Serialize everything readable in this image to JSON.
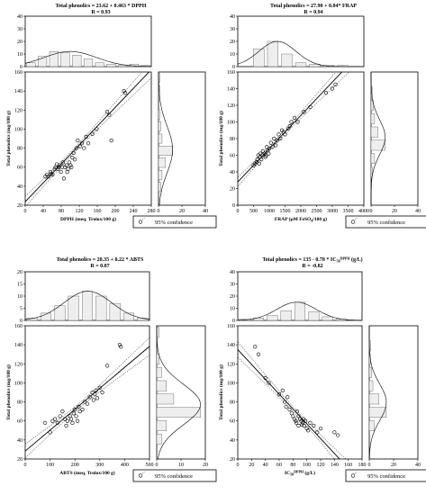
{
  "chart_data": [
    {
      "type": "scatter",
      "title": "Total phenolics = 23.62 + 0.463 * DPPH",
      "subtitle": "R = 0.93",
      "xlabel": "DPPH (meq. Trolox/100 g)",
      "ylabel": "Total phenolics (mg/100 g)",
      "xlim": [
        0,
        300
      ],
      "xticks": [
        "0",
        "40",
        "80",
        "120",
        "160",
        "200",
        "240",
        "280"
      ],
      "ylim": [
        20,
        160
      ],
      "yticks": [
        "20",
        "40",
        "60",
        "80",
        "100",
        "120",
        "140",
        "160"
      ],
      "fit": {
        "intercept": 23.62,
        "slope": 0.463
      },
      "points": [
        [
          48,
          50
        ],
        [
          52,
          52
        ],
        [
          55,
          50
        ],
        [
          60,
          55
        ],
        [
          62,
          53
        ],
        [
          65,
          52
        ],
        [
          70,
          58
        ],
        [
          72,
          60
        ],
        [
          75,
          63
        ],
        [
          78,
          58
        ],
        [
          80,
          60
        ],
        [
          82,
          62
        ],
        [
          85,
          55
        ],
        [
          88,
          60
        ],
        [
          90,
          65
        ],
        [
          92,
          48
        ],
        [
          95,
          60
        ],
        [
          98,
          62
        ],
        [
          100,
          55
        ],
        [
          102,
          58
        ],
        [
          105,
          65
        ],
        [
          108,
          62
        ],
        [
          110,
          60
        ],
        [
          112,
          70
        ],
        [
          115,
          75
        ],
        [
          118,
          68
        ],
        [
          122,
          80
        ],
        [
          125,
          88
        ],
        [
          130,
          82
        ],
        [
          135,
          85
        ],
        [
          140,
          80
        ],
        [
          145,
          92
        ],
        [
          150,
          85
        ],
        [
          160,
          95
        ],
        [
          170,
          100
        ],
        [
          195,
          118
        ],
        [
          200,
          115
        ],
        [
          205,
          88
        ],
        [
          235,
          140
        ],
        [
          238,
          138
        ]
      ],
      "top_hist": {
        "ylim": [
          0,
          40
        ],
        "yticks": [
          "0",
          "10",
          "20",
          "30",
          "40"
        ],
        "values": [
          3,
          8,
          12,
          11,
          9,
          6,
          3,
          2,
          1,
          2,
          1
        ]
      },
      "side_hist": {
        "xlim": [
          0,
          40
        ],
        "xticks": [
          "0",
          "20",
          "40"
        ],
        "values": [
          0,
          2,
          3,
          6,
          12,
          3,
          2,
          1,
          0,
          1,
          1
        ]
      },
      "legend": "95% confidence",
      "grid": false
    },
    {
      "type": "scatter",
      "title": "Total phenolics = 27.90 + 0.04* FRAP",
      "subtitle": "R = 0.94",
      "xlabel": "FRAP (µM FeSO4/100 g)",
      "ylabel": "Total phenolics (mg/100 g)",
      "xlim": [
        0,
        4000
      ],
      "xticks": [
        "0",
        "500",
        "1000",
        "1500",
        "2000",
        "2500",
        "3000",
        "3500",
        "4000"
      ],
      "ylim": [
        0,
        160
      ],
      "yticks": [
        "0",
        "20",
        "40",
        "60",
        "80",
        "100",
        "120",
        "140",
        "160"
      ],
      "fit": {
        "intercept": 27.9,
        "slope": 0.04
      },
      "points": [
        [
          500,
          48
        ],
        [
          550,
          50
        ],
        [
          600,
          52
        ],
        [
          620,
          55
        ],
        [
          650,
          60
        ],
        [
          680,
          50
        ],
        [
          700,
          58
        ],
        [
          720,
          62
        ],
        [
          750,
          55
        ],
        [
          780,
          60
        ],
        [
          800,
          65
        ],
        [
          850,
          62
        ],
        [
          880,
          58
        ],
        [
          900,
          60
        ],
        [
          920,
          70
        ],
        [
          950,
          66
        ],
        [
          980,
          62
        ],
        [
          1000,
          68
        ],
        [
          1050,
          75
        ],
        [
          1100,
          70
        ],
        [
          1150,
          80
        ],
        [
          1200,
          72
        ],
        [
          1250,
          78
        ],
        [
          1300,
          85
        ],
        [
          1350,
          80
        ],
        [
          1400,
          90
        ],
        [
          1450,
          88
        ],
        [
          1500,
          85
        ],
        [
          1600,
          92
        ],
        [
          1650,
          95
        ],
        [
          1700,
          100
        ],
        [
          1800,
          105
        ],
        [
          1900,
          100
        ],
        [
          2100,
          112
        ],
        [
          2300,
          118
        ],
        [
          2800,
          135
        ],
        [
          3000,
          140
        ],
        [
          3100,
          145
        ]
      ],
      "top_hist": {
        "ylim": [
          0,
          40
        ],
        "yticks": [
          "0",
          "10",
          "20",
          "30",
          "40"
        ],
        "values": [
          0,
          14,
          20,
          10,
          3,
          2,
          1,
          1,
          0
        ]
      },
      "side_hist": {
        "xlim": [
          0,
          40
        ],
        "xticks": [
          "0",
          "20",
          "40"
        ],
        "values": [
          0,
          0,
          1,
          3,
          12,
          6,
          3,
          2,
          1,
          0
        ]
      },
      "legend": "95% confidence",
      "grid": false
    },
    {
      "type": "scatter",
      "title": "Total phenolics = 28.35 + 0.22 * ABTS",
      "subtitle": "R = 0.87",
      "xlabel": "ABTS (meq. Trolox/100 g)",
      "ylabel": "Total phenolics (mg/100 g)",
      "xlim": [
        0,
        500
      ],
      "xticks": [
        "0",
        "100",
        "200",
        "300",
        "400",
        "500"
      ],
      "ylim": [
        20,
        160
      ],
      "yticks": [
        "20",
        "40",
        "60",
        "80",
        "100",
        "120",
        "140",
        "160"
      ],
      "fit": {
        "intercept": 28.35,
        "slope": 0.22
      },
      "points": [
        [
          80,
          58
        ],
        [
          100,
          48
        ],
        [
          110,
          60
        ],
        [
          120,
          62
        ],
        [
          130,
          58
        ],
        [
          140,
          65
        ],
        [
          150,
          70
        ],
        [
          160,
          62
        ],
        [
          165,
          55
        ],
        [
          170,
          60
        ],
        [
          180,
          65
        ],
        [
          185,
          62
        ],
        [
          190,
          58
        ],
        [
          195,
          68
        ],
        [
          200,
          72
        ],
        [
          205,
          65
        ],
        [
          210,
          60
        ],
        [
          215,
          75
        ],
        [
          220,
          70
        ],
        [
          230,
          72
        ],
        [
          240,
          80
        ],
        [
          250,
          78
        ],
        [
          260,
          85
        ],
        [
          270,
          90
        ],
        [
          275,
          82
        ],
        [
          280,
          88
        ],
        [
          285,
          92
        ],
        [
          290,
          84
        ],
        [
          300,
          95
        ],
        [
          310,
          90
        ],
        [
          330,
          118
        ],
        [
          380,
          140
        ],
        [
          385,
          138
        ]
      ],
      "top_hist": {
        "ylim": [
          0,
          20
        ],
        "yticks": [
          "0",
          "5",
          "10",
          "15",
          "20"
        ],
        "values": [
          1,
          3,
          6,
          10,
          12,
          10,
          7,
          3,
          1
        ]
      },
      "side_hist": {
        "xlim": [
          0,
          20
        ],
        "xticks": [
          "0",
          "10",
          "20"
        ],
        "values": [
          0,
          2,
          4,
          18,
          7,
          4,
          2,
          1,
          0,
          1
        ]
      },
      "legend": "95% confidence",
      "grid": false
    },
    {
      "type": "scatter",
      "title": "Total phenolics = 135 - 0.78 * IC50DPPH (g/L)",
      "subtitle": "R = -0.82",
      "xlabel": "IC50DPPH (g/L)",
      "ylabel": "Total phenolics (mg/100 g)",
      "xlim": [
        0,
        180
      ],
      "xticks": [
        "0",
        "20",
        "40",
        "60",
        "80",
        "100",
        "120",
        "140",
        "160",
        "180"
      ],
      "ylim": [
        20,
        160
      ],
      "yticks": [
        "20",
        "40",
        "60",
        "80",
        "100",
        "120",
        "140",
        "160"
      ],
      "fit": {
        "intercept": 135,
        "slope": -0.78
      },
      "points": [
        [
          25,
          138
        ],
        [
          30,
          130
        ],
        [
          40,
          105
        ],
        [
          45,
          100
        ],
        [
          60,
          88
        ],
        [
          65,
          92
        ],
        [
          68,
          80
        ],
        [
          70,
          75
        ],
        [
          72,
          85
        ],
        [
          75,
          72
        ],
        [
          78,
          68
        ],
        [
          80,
          65
        ],
        [
          82,
          62
        ],
        [
          84,
          60
        ],
        [
          85,
          58
        ],
        [
          86,
          70
        ],
        [
          88,
          55
        ],
        [
          88,
          65
        ],
        [
          90,
          62
        ],
        [
          92,
          60
        ],
        [
          93,
          56
        ],
        [
          94,
          58
        ],
        [
          95,
          62
        ],
        [
          96,
          55
        ],
        [
          98,
          60
        ],
        [
          100,
          52
        ],
        [
          102,
          50
        ],
        [
          105,
          58
        ],
        [
          110,
          55
        ],
        [
          115,
          48
        ],
        [
          120,
          52
        ],
        [
          140,
          48
        ],
        [
          145,
          45
        ]
      ],
      "top_hist": {
        "ylim": [
          0,
          40
        ],
        "yticks": [
          "0",
          "10",
          "20",
          "30",
          "40"
        ],
        "values": [
          1,
          2,
          4,
          8,
          15,
          7,
          3,
          1,
          0
        ]
      },
      "side_hist": {
        "xlim": [
          0,
          40
        ],
        "xticks": [
          "0",
          "20",
          "40"
        ],
        "values": [
          0,
          0,
          4,
          14,
          8,
          3,
          2,
          1,
          1,
          0
        ]
      },
      "legend": "95% confidence",
      "grid": false
    }
  ]
}
